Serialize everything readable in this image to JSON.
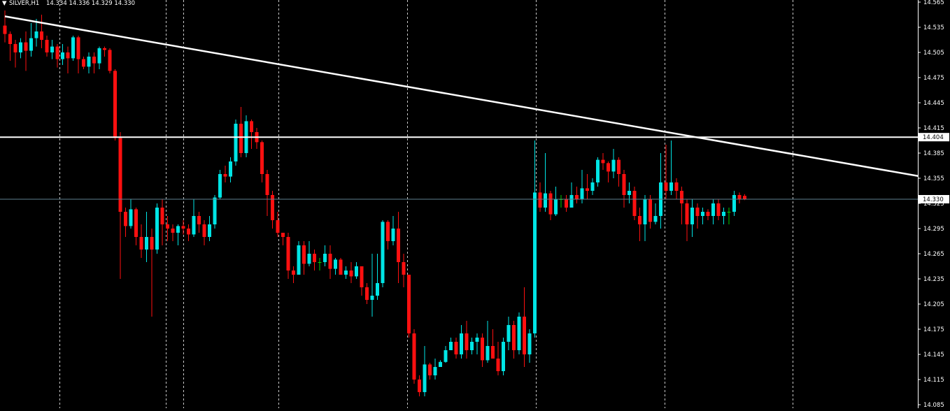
{
  "header": {
    "arrow": "▼",
    "symbol": "SILVER,H1",
    "ohlc": "14.334 14.336 14.329 14.330"
  },
  "colors": {
    "background": "#000000",
    "bull": "#00e5e5",
    "bear": "#ff1010",
    "doji": "#00cc00",
    "grid": "#c8c8c8",
    "line": "#ffffff",
    "bid_line": "#5f7f8f"
  },
  "chart_data": {
    "type": "candlestick",
    "title": "SILVER,H1",
    "ylim": [
      14.085,
      14.565
    ],
    "y_ticks": [
      "14.565",
      "14.535",
      "14.505",
      "14.475",
      "14.445",
      "14.415",
      "14.385",
      "14.355",
      "14.325",
      "14.295",
      "14.265",
      "14.235",
      "14.205",
      "14.175",
      "14.145",
      "14.115",
      "14.085"
    ],
    "grid": "vertical dashed",
    "horizontal_line": {
      "value": 14.404,
      "label": "14.404"
    },
    "current_price": {
      "value": 14.33,
      "label": "14.330"
    },
    "trendline": {
      "from": {
        "index": 0,
        "price": 14.548
      },
      "to": {
        "index": 176.5,
        "price": 14.355
      }
    },
    "candles": [
      [
        14.537,
        14.527,
        14.555,
        14.517
      ],
      [
        14.527,
        14.515,
        14.53,
        14.495
      ],
      [
        14.515,
        14.505,
        14.52,
        14.487
      ],
      [
        14.505,
        14.517,
        14.522,
        14.498
      ],
      [
        14.517,
        14.507,
        14.53,
        14.483
      ],
      [
        14.507,
        14.522,
        14.54,
        14.5
      ],
      [
        14.522,
        14.53,
        14.545,
        14.512
      ],
      [
        14.53,
        14.52,
        14.55,
        14.51
      ],
      [
        14.52,
        14.505,
        14.525,
        14.5
      ],
      [
        14.505,
        14.512,
        14.52,
        14.497
      ],
      [
        14.512,
        14.497,
        14.515,
        14.487
      ],
      [
        14.497,
        14.505,
        14.515,
        14.49
      ],
      [
        14.505,
        14.498,
        14.512,
        14.48
      ],
      [
        14.498,
        14.523,
        14.525,
        14.495
      ],
      [
        14.523,
        14.497,
        14.525,
        14.48
      ],
      [
        14.497,
        14.488,
        14.5,
        14.485
      ],
      [
        14.488,
        14.5,
        14.505,
        14.48
      ],
      [
        14.5,
        14.492,
        14.505,
        14.48
      ],
      [
        14.492,
        14.51,
        14.512,
        14.485
      ],
      [
        14.51,
        14.508,
        14.512,
        14.5
      ],
      [
        14.508,
        14.483,
        14.51,
        14.48
      ],
      [
        14.483,
        14.403,
        14.485,
        14.4
      ],
      [
        14.403,
        14.315,
        14.41,
        14.235
      ],
      [
        14.315,
        14.298,
        14.32,
        14.285
      ],
      [
        14.298,
        14.318,
        14.33,
        14.295
      ],
      [
        14.318,
        14.285,
        14.32,
        14.275
      ],
      [
        14.285,
        14.27,
        14.3,
        14.26
      ],
      [
        14.27,
        14.285,
        14.315,
        14.255
      ],
      [
        14.285,
        14.27,
        14.295,
        14.19
      ],
      [
        14.27,
        14.32,
        14.325,
        14.265
      ],
      [
        14.32,
        14.3,
        14.33,
        14.275
      ],
      [
        14.3,
        14.295,
        14.31,
        14.28
      ],
      [
        14.295,
        14.29,
        14.3,
        14.28
      ],
      [
        14.29,
        14.298,
        14.3,
        14.275
      ],
      [
        14.298,
        14.295,
        14.305,
        14.288
      ],
      [
        14.295,
        14.288,
        14.3,
        14.28
      ],
      [
        14.288,
        14.31,
        14.33,
        14.285
      ],
      [
        14.31,
        14.3,
        14.315,
        14.29
      ],
      [
        14.3,
        14.285,
        14.305,
        14.275
      ],
      [
        14.285,
        14.3,
        14.31,
        14.28
      ],
      [
        14.3,
        14.332,
        14.335,
        14.295
      ],
      [
        14.332,
        14.36,
        14.365,
        14.33
      ],
      [
        14.36,
        14.357,
        14.37,
        14.35
      ],
      [
        14.357,
        14.375,
        14.38,
        14.35
      ],
      [
        14.375,
        14.42,
        14.425,
        14.37
      ],
      [
        14.42,
        14.385,
        14.44,
        14.38
      ],
      [
        14.385,
        14.423,
        14.43,
        14.38
      ],
      [
        14.423,
        14.41,
        14.425,
        14.39
      ],
      [
        14.41,
        14.398,
        14.415,
        14.39
      ],
      [
        14.398,
        14.36,
        14.4,
        14.35
      ],
      [
        14.36,
        14.335,
        14.365,
        14.31
      ],
      [
        14.335,
        14.305,
        14.34,
        14.295
      ],
      [
        14.305,
        14.29,
        14.315,
        14.285
      ],
      [
        14.29,
        14.285,
        14.29,
        14.275
      ],
      [
        14.285,
        14.245,
        14.29,
        14.235
      ],
      [
        14.245,
        14.24,
        14.25,
        14.23
      ],
      [
        14.24,
        14.275,
        14.28,
        14.24
      ],
      [
        14.275,
        14.253,
        14.28,
        14.24
      ],
      [
        14.253,
        14.265,
        14.28,
        14.25
      ],
      [
        14.265,
        14.255,
        14.27,
        14.245
      ],
      [
        14.255,
        14.255,
        14.26,
        14.245
      ],
      [
        14.255,
        14.265,
        14.275,
        14.25
      ],
      [
        14.265,
        14.247,
        14.275,
        14.235
      ],
      [
        14.247,
        14.258,
        14.26,
        14.24
      ],
      [
        14.258,
        14.24,
        14.26,
        14.24
      ],
      [
        14.24,
        14.245,
        14.25,
        14.235
      ],
      [
        14.245,
        14.238,
        14.255,
        14.23
      ],
      [
        14.238,
        14.25,
        14.255,
        14.235
      ],
      [
        14.25,
        14.225,
        14.25,
        14.215
      ],
      [
        14.225,
        14.21,
        14.23,
        14.205
      ],
      [
        14.21,
        14.215,
        14.265,
        14.19
      ],
      [
        14.215,
        14.23,
        14.265,
        14.21
      ],
      [
        14.23,
        14.303,
        14.305,
        14.225
      ],
      [
        14.303,
        14.28,
        14.305,
        14.27
      ],
      [
        14.28,
        14.295,
        14.31,
        14.275
      ],
      [
        14.295,
        14.255,
        14.315,
        14.23
      ],
      [
        14.255,
        14.24,
        14.265,
        14.225
      ],
      [
        14.24,
        14.17,
        14.24,
        14.165
      ],
      [
        14.17,
        14.115,
        14.175,
        14.11
      ],
      [
        14.115,
        14.1,
        14.12,
        14.095
      ],
      [
        14.1,
        14.133,
        14.155,
        14.095
      ],
      [
        14.133,
        14.12,
        14.135,
        14.115
      ],
      [
        14.12,
        14.13,
        14.14,
        14.115
      ],
      [
        14.13,
        14.136,
        14.138,
        14.134
      ],
      [
        14.136,
        14.15,
        14.155,
        14.135
      ],
      [
        14.15,
        14.16,
        14.165,
        14.15
      ],
      [
        14.16,
        14.145,
        14.165,
        14.14
      ],
      [
        14.145,
        14.17,
        14.18,
        14.14
      ],
      [
        14.17,
        14.15,
        14.185,
        14.14
      ],
      [
        14.15,
        14.16,
        14.165,
        14.145
      ],
      [
        14.16,
        14.165,
        14.17,
        14.145
      ],
      [
        14.165,
        14.138,
        14.17,
        14.13
      ],
      [
        14.138,
        14.155,
        14.185,
        14.135
      ],
      [
        14.155,
        14.14,
        14.175,
        14.14
      ],
      [
        14.14,
        14.125,
        14.16,
        14.12
      ],
      [
        14.125,
        14.16,
        14.165,
        14.12
      ],
      [
        14.16,
        14.18,
        14.19,
        14.15
      ],
      [
        14.18,
        14.15,
        14.185,
        14.14
      ],
      [
        14.15,
        14.19,
        14.195,
        14.145
      ],
      [
        14.19,
        14.145,
        14.225,
        14.13
      ],
      [
        14.145,
        14.17,
        14.175,
        14.135
      ],
      [
        14.17,
        14.338,
        14.4,
        14.165
      ],
      [
        14.338,
        14.32,
        14.35,
        14.315
      ],
      [
        14.32,
        14.337,
        14.385,
        14.315
      ],
      [
        14.337,
        14.312,
        14.34,
        14.305
      ],
      [
        14.312,
        14.33,
        14.345,
        14.31
      ],
      [
        14.33,
        14.33,
        14.335,
        14.32
      ],
      [
        14.33,
        14.32,
        14.335,
        14.315
      ],
      [
        14.32,
        14.335,
        14.35,
        14.32
      ],
      [
        14.335,
        14.33,
        14.345,
        14.325
      ],
      [
        14.33,
        14.343,
        14.365,
        14.325
      ],
      [
        14.343,
        14.34,
        14.36,
        14.33
      ],
      [
        14.34,
        14.35,
        14.355,
        14.335
      ],
      [
        14.35,
        14.377,
        14.38,
        14.345
      ],
      [
        14.377,
        14.373,
        14.385,
        14.365
      ],
      [
        14.373,
        14.363,
        14.375,
        14.35
      ],
      [
        14.363,
        14.377,
        14.39,
        14.355
      ],
      [
        14.377,
        14.36,
        14.38,
        14.345
      ],
      [
        14.36,
        14.335,
        14.365,
        14.32
      ],
      [
        14.335,
        14.34,
        14.35,
        14.325
      ],
      [
        14.34,
        14.31,
        14.345,
        14.305
      ],
      [
        14.31,
        14.3,
        14.32,
        14.28
      ],
      [
        14.3,
        14.33,
        14.335,
        14.28
      ],
      [
        14.33,
        14.303,
        14.335,
        14.295
      ],
      [
        14.303,
        14.31,
        14.325,
        14.3
      ],
      [
        14.31,
        14.35,
        14.385,
        14.295
      ],
      [
        14.35,
        14.34,
        14.395,
        14.33
      ],
      [
        14.34,
        14.35,
        14.4,
        14.335
      ],
      [
        14.35,
        14.34,
        14.355,
        14.33
      ],
      [
        14.34,
        14.325,
        14.345,
        14.3
      ],
      [
        14.325,
        14.3,
        14.33,
        14.28
      ],
      [
        14.3,
        14.32,
        14.33,
        14.285
      ],
      [
        14.32,
        14.31,
        14.325,
        14.295
      ],
      [
        14.31,
        14.315,
        14.32,
        14.3
      ],
      [
        14.315,
        14.31,
        14.318,
        14.305
      ],
      [
        14.31,
        14.325,
        14.33,
        14.3
      ],
      [
        14.325,
        14.31,
        14.33,
        14.305
      ],
      [
        14.31,
        14.315,
        14.32,
        14.3
      ],
      [
        14.315,
        14.315,
        14.32,
        14.3
      ],
      [
        14.315,
        14.335,
        14.34,
        14.31
      ],
      [
        14.335,
        14.33,
        14.338,
        14.325
      ],
      [
        14.334,
        14.33,
        14.336,
        14.329
      ]
    ]
  }
}
